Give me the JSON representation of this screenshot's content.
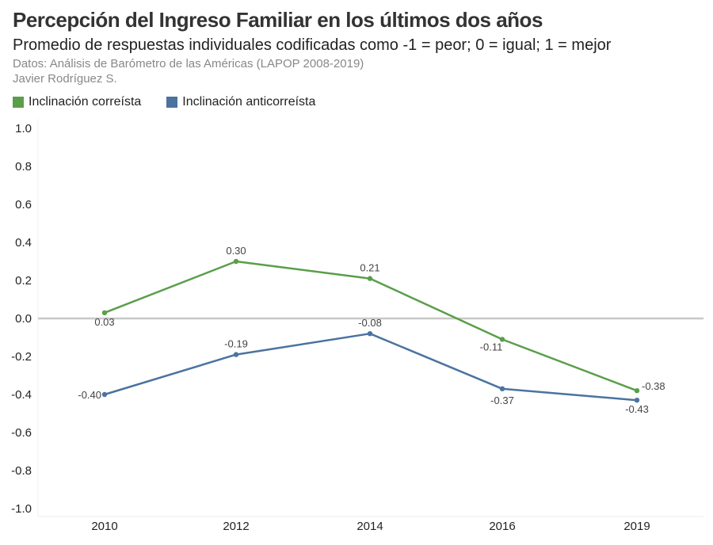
{
  "header": {
    "title": "Percepción del Ingreso Familiar en los últimos dos años",
    "subtitle": "Promedio de respuestas individuales codificadas como -1 = peor; 0 = igual; 1 = mejor",
    "source": "Datos: Análisis de Barómetro de las Américas (LAPOP 2008-2019)",
    "author": "Javier Rodríguez S."
  },
  "legend": [
    {
      "label": "Inclinación correísta",
      "color": "#5a9e4a"
    },
    {
      "label": "Inclinación anticorreísta",
      "color": "#4a73a0"
    }
  ],
  "chart_data": {
    "type": "line",
    "title": "Percepción del Ingreso Familiar en los últimos dos años",
    "xlabel": "",
    "ylabel": "",
    "categories": [
      "2010",
      "2012",
      "2014",
      "2016",
      "2019"
    ],
    "ylim": [
      -1.0,
      1.0
    ],
    "yticks": [
      "1.0",
      "0.8",
      "0.6",
      "0.4",
      "0.2",
      "0.0",
      "-0.2",
      "-0.4",
      "-0.6",
      "-0.8",
      "-1.0"
    ],
    "series": [
      {
        "name": "Inclinación correísta",
        "color": "#5a9e4a",
        "values": [
          0.03,
          0.3,
          0.21,
          -0.11,
          -0.38
        ],
        "labels": [
          "0.03",
          "0.30",
          "0.21",
          "-0.11",
          "-0.38"
        ]
      },
      {
        "name": "Inclinación anticorreísta",
        "color": "#4a73a0",
        "values": [
          -0.4,
          -0.19,
          -0.08,
          -0.37,
          -0.43
        ],
        "labels": [
          "-0.40",
          "-0.19",
          "-0.08",
          "-0.37",
          "-0.43"
        ]
      }
    ]
  }
}
